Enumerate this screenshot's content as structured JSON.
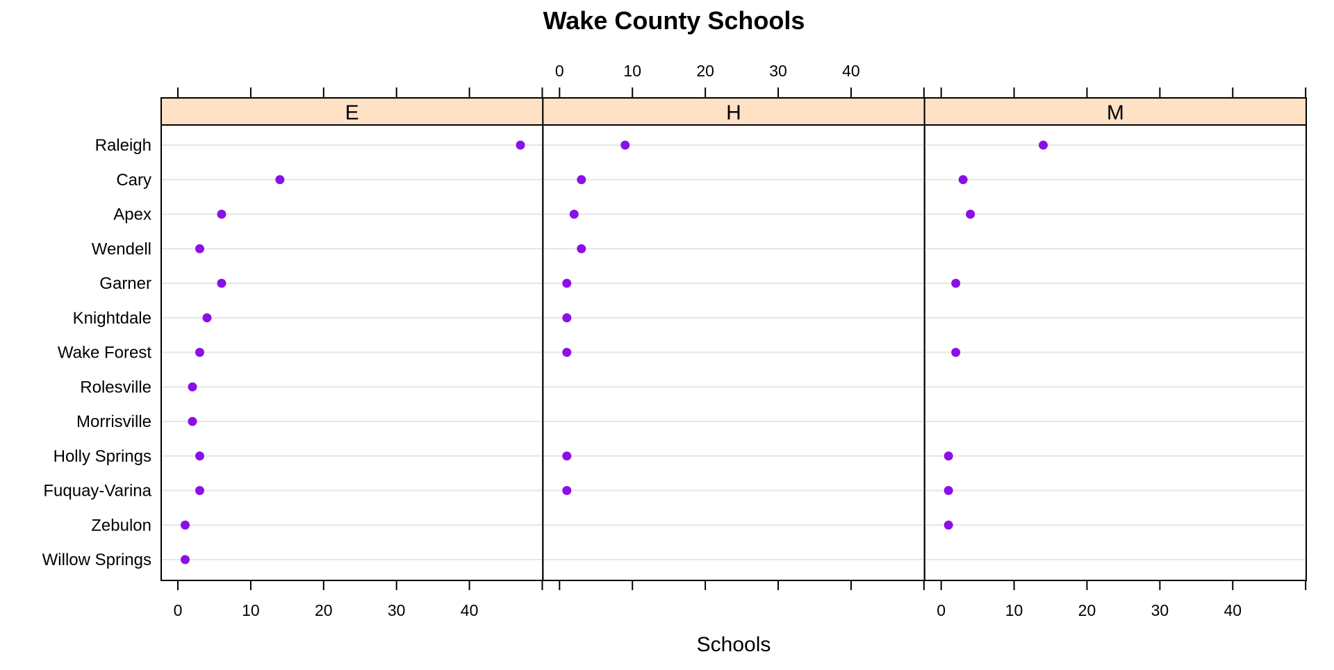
{
  "chart_data": {
    "type": "scatter",
    "title": "Wake County Schools",
    "xlabel": "Schools",
    "ylabel": "",
    "xlim": [
      -2,
      50
    ],
    "xticks": [
      0,
      10,
      20,
      30,
      40
    ],
    "grid": true,
    "point_color": "#8B10E6",
    "strip_color": "#FFE1C6",
    "categories": [
      "Raleigh",
      "Cary",
      "Apex",
      "Wendell",
      "Garner",
      "Knightdale",
      "Wake Forest",
      "Rolesville",
      "Morrisville",
      "Holly Springs",
      "Fuquay-Varina",
      "Zebulon",
      "Willow Springs"
    ],
    "panels": [
      {
        "name": "E",
        "values": [
          47,
          14,
          6,
          3,
          6,
          4,
          3,
          2,
          2,
          3,
          3,
          1,
          1
        ]
      },
      {
        "name": "H",
        "values": [
          9,
          3,
          2,
          3,
          1,
          1,
          1,
          null,
          null,
          1,
          1,
          null,
          null
        ]
      },
      {
        "name": "M",
        "values": [
          14,
          3,
          4,
          null,
          2,
          null,
          2,
          null,
          null,
          1,
          1,
          1,
          null
        ]
      }
    ]
  }
}
